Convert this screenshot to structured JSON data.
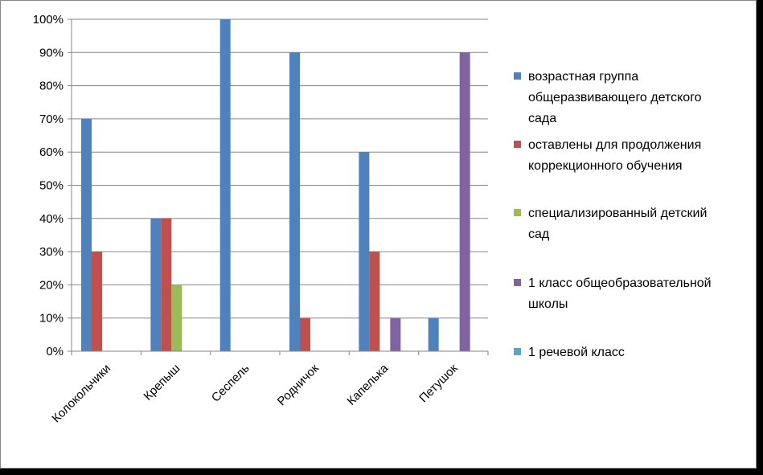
{
  "chart_data": {
    "type": "bar",
    "categories": [
      "Колокольчики",
      "Крепыш",
      "Сеспель",
      "Родничок",
      "Капелька",
      "Петушок"
    ],
    "series": [
      {
        "name": "возрастная группа общеразвивающего детского сада",
        "color": "#4F81BD",
        "values": [
          70,
          40,
          100,
          90,
          60,
          10
        ]
      },
      {
        "name": "оставлены для продолжения коррекционного обучения",
        "color": "#C0504D",
        "values": [
          30,
          40,
          0,
          10,
          30,
          0
        ]
      },
      {
        "name": "специализированный детский сад",
        "color": "#9BBB59",
        "values": [
          0,
          20,
          0,
          0,
          0,
          0
        ]
      },
      {
        "name": "1 класс общеобразовательной школы",
        "color": "#8064A2",
        "values": [
          0,
          0,
          0,
          0,
          10,
          90
        ]
      },
      {
        "name": "1 речевой класс",
        "color": "#4BACC6",
        "values": [
          0,
          0,
          0,
          0,
          0,
          0
        ]
      }
    ],
    "y_ticks": [
      "0%",
      "10%",
      "20%",
      "30%",
      "40%",
      "50%",
      "60%",
      "70%",
      "80%",
      "90%",
      "100%"
    ],
    "ylim": [
      0,
      100
    ],
    "grid": true,
    "legend_position": "right",
    "legend_lines": [
      [
        "возрастная группа",
        "общеразвивающего детского",
        "сада"
      ],
      [
        "оставлены для продолжения",
        "коррекционного обучения"
      ],
      [
        "специализированный детский",
        "сад"
      ],
      [
        "1 класс общеобразовательной",
        "школы"
      ],
      [
        "1 речевой класс"
      ]
    ]
  }
}
